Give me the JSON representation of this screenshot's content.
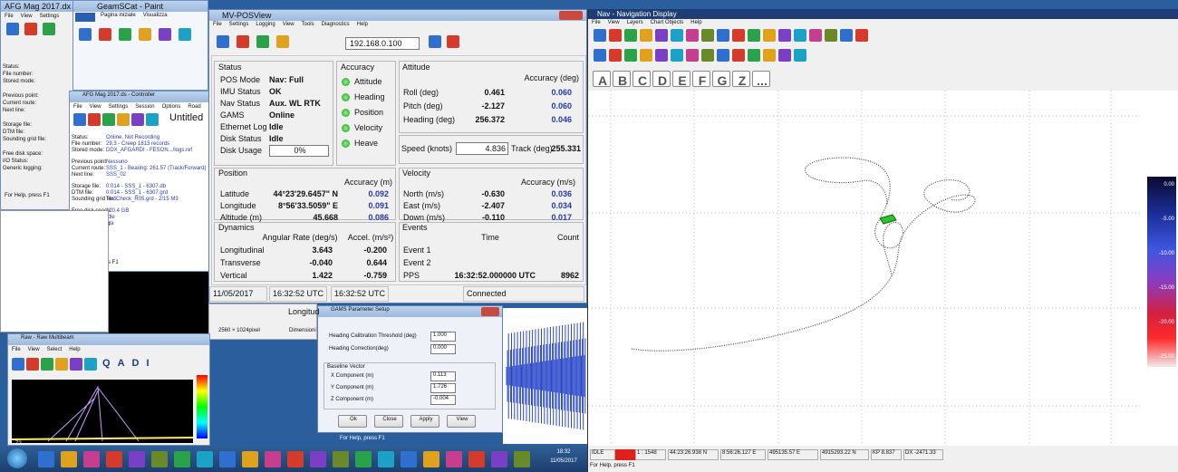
{
  "afg": {
    "title": "AFG Mag 2017.dx",
    "menu": [
      "File",
      "View",
      "Settings"
    ],
    "status": [
      "Status:",
      "File number:",
      "Stored mode:",
      "Previous point:",
      "Current route:",
      "Next line:",
      "Storage file:",
      "DTM file:",
      "Sounding grid file:",
      "Free disk space:",
      "I/O Status:",
      "Generic logging:"
    ],
    "help": "For Help, press F1"
  },
  "paint": {
    "title": "GeamSCat - Paint",
    "tabs": [
      "Pagina iniziale",
      "Visualizza"
    ],
    "size": "2560 × 1024pixel",
    "dim": "Dimensioni"
  },
  "controller": {
    "title": "AFG Mag 2017.ds - Controller",
    "menu": [
      "File",
      "View",
      "Settings",
      "Session",
      "Options",
      "Road",
      "Help"
    ],
    "doc": "Untitled",
    "status": [
      [
        "Status:",
        "Online, Not Recording"
      ],
      [
        "File number:",
        "29.3 - Creep 1813 records"
      ],
      [
        "Stored mode:",
        "DDX_AFGARDI - FESON.../logs.ref"
      ],
      [
        "Previous point:",
        "Nessuno"
      ],
      [
        "Current route:",
        "SSS_1 - Bearing: 261.57 (Track/Forward)"
      ],
      [
        "Next line:",
        "SSS_02"
      ],
      [
        "Storage file:",
        "0:014 - SSS_1 - 6307.db"
      ],
      [
        "DTM file:",
        "0:014 - SSS_1 - 6307.grd"
      ],
      [
        "Sounding grid file:",
        "TestCheck_R05.grd - 2/15 M3"
      ],
      [
        "Free disk space:",
        "120.4 GB"
      ],
      [
        "I/O Status:",
        "Idle"
      ],
      [
        "Generic logging:",
        "n/a"
      ]
    ],
    "help": "For Help, press F1"
  },
  "raw": {
    "title": "Raw - Raw Multibeam",
    "menu": [
      "File",
      "View",
      "Select",
      "Help"
    ],
    "tools": [
      "Q",
      "A",
      "D",
      "I"
    ],
    "depth": "-72"
  },
  "posview": {
    "title": "MV-POSView",
    "menu": [
      "File",
      "Settings",
      "Logging",
      "View",
      "Tools",
      "Diagnostics",
      "Help"
    ],
    "ip": "192.168.0.100",
    "status": {
      "heading": "Status",
      "rows": [
        [
          "POS Mode",
          "Nav: Full"
        ],
        [
          "IMU Status",
          "OK"
        ],
        [
          "Nav Status",
          "Aux. WL RTK"
        ],
        [
          "GAMS",
          "Online"
        ],
        [
          "Ethernet Log",
          "Idle"
        ],
        [
          "Disk Status",
          "Idle"
        ]
      ],
      "usage_label": "Disk Usage",
      "usage": "0%"
    },
    "accuracy": {
      "heading": "Accuracy",
      "items": [
        "Attitude",
        "Heading",
        "Position",
        "Velocity",
        "Heave"
      ]
    },
    "attitude": {
      "heading": "Attitude",
      "col": "Accuracy (deg)",
      "rows": [
        [
          "Roll (deg)",
          "0.461",
          "0.060"
        ],
        [
          "Pitch (deg)",
          "-2.127",
          "0.060"
        ],
        [
          "Heading (deg)",
          "256.372",
          "0.046"
        ]
      ]
    },
    "speed": {
      "label": "Speed (knots)",
      "value": "4.836",
      "track_label": "Track (deg)",
      "track": "255.331"
    },
    "position": {
      "heading": "Position",
      "col": "Accuracy (m)",
      "rows": [
        [
          "Latitude",
          "44°23'29.6457\" N",
          "0.092"
        ],
        [
          "Longitude",
          "8°56'33.5059\" E",
          "0.091"
        ],
        [
          "Altitude (m)",
          "45.668",
          "0.086"
        ]
      ]
    },
    "velocity": {
      "heading": "Velocity",
      "col": "Accuracy (m/s)",
      "rows": [
        [
          "North (m/s)",
          "-0.630",
          "0.036"
        ],
        [
          "East (m/s)",
          "-2.407",
          "0.034"
        ],
        [
          "Down (m/s)",
          "-0.110",
          "0.017"
        ]
      ]
    },
    "dynamics": {
      "heading": "Dynamics",
      "cols": [
        "Angular Rate (deg/s)",
        "Accel. (m/s²)"
      ],
      "rows": [
        [
          "Longitudinal",
          "3.643",
          "-0.200"
        ],
        [
          "Transverse",
          "-0.040",
          "0.644"
        ],
        [
          "Vertical",
          "1.422",
          "-0.759"
        ]
      ]
    },
    "events": {
      "heading": "Events",
      "cols": [
        "Time",
        "Count"
      ],
      "names": [
        "Event 1",
        "Event 2",
        "PPS"
      ],
      "pps_time": "16:32:52.000000 UTC",
      "pps_count": "8962"
    },
    "statusbar": [
      "11/05/2017",
      "16:32:52 UTC",
      "16:32:52 UTC",
      "Connected"
    ]
  },
  "longitude_peek": "Longitud",
  "gams": {
    "title": "GAMS Parameter Setup",
    "rows": [
      [
        "Heading Calibration Threshold (deg)",
        "1.000"
      ],
      [
        "Heading Correction(deg)",
        "0.000"
      ]
    ],
    "group": "Baseline Vector",
    "vector": [
      [
        "X Component (m)",
        "0.113"
      ],
      [
        "Y Component (m)",
        "1.726"
      ],
      [
        "Z Component (m)",
        "-0.004"
      ]
    ],
    "buttons": [
      "Ok",
      "Close",
      "Apply",
      "View"
    ],
    "help": "For Help, press F1"
  },
  "nav": {
    "title": "Nav - Navigation Display",
    "menu": [
      "File",
      "View",
      "Layers",
      "Chart Objects",
      "Help"
    ],
    "letters": [
      "A",
      "B",
      "C",
      "D",
      "E",
      "F",
      "G",
      "Z",
      "..."
    ],
    "scale": [
      "0.00",
      "-5.00",
      "-10.00",
      "-15.00",
      "-20.00",
      "-25.00"
    ],
    "status": [
      "IDLE",
      "1 : 1548",
      "44:23:26.938 N",
      "8:56:26.127 E",
      "495135.57 E",
      "4915293.22 N",
      "KP 8.837",
      "DX -2471.33"
    ],
    "help": "For Help, press F1"
  },
  "clock": {
    "time": "18:32",
    "date": "11/05/2017"
  }
}
